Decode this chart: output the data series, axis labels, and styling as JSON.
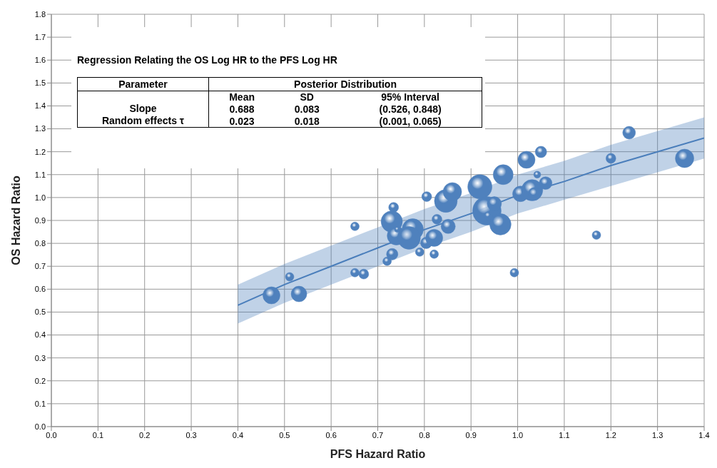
{
  "chart_data": {
    "type": "bubble",
    "xlabel": "PFS Hazard Ratio",
    "ylabel": "OS Hazard Ratio",
    "xlim": [
      0,
      1.4
    ],
    "ylim": [
      0,
      1.8
    ],
    "xticks": [
      {
        "value": 0,
        "label": "0.0"
      },
      {
        "value": 0.1,
        "label": "0.1"
      },
      {
        "value": 0.2,
        "label": "0.2"
      },
      {
        "value": 0.3,
        "label": "0.3"
      },
      {
        "value": 0.4,
        "label": "0.4"
      },
      {
        "value": 0.5,
        "label": "0.5"
      },
      {
        "value": 0.6,
        "label": "0.6"
      },
      {
        "value": 0.7,
        "label": "0.7"
      },
      {
        "value": 0.8,
        "label": "0.8"
      },
      {
        "value": 0.9,
        "label": "0.9"
      },
      {
        "value": 1,
        "label": "1.0"
      },
      {
        "value": 1.1,
        "label": "1.1"
      },
      {
        "value": 1.2,
        "label": "1.2"
      },
      {
        "value": 1.3,
        "label": "1.3"
      },
      {
        "value": 1.4,
        "label": "1.4"
      }
    ],
    "yticks": [
      {
        "value": 0,
        "label": "0.0"
      },
      {
        "value": 0.1,
        "label": "0.1"
      },
      {
        "value": 0.2,
        "label": "0.2"
      },
      {
        "value": 0.3,
        "label": "0.3"
      },
      {
        "value": 0.4,
        "label": "0.4"
      },
      {
        "value": 0.5,
        "label": "0.5"
      },
      {
        "value": 0.6,
        "label": "0.6"
      },
      {
        "value": 0.7,
        "label": "0.7"
      },
      {
        "value": 0.8,
        "label": "0.8"
      },
      {
        "value": 0.9,
        "label": "0.9"
      },
      {
        "value": 1,
        "label": "1.0"
      },
      {
        "value": 1.1,
        "label": "1.1"
      },
      {
        "value": 1.2,
        "label": "1.2"
      },
      {
        "value": 1.3,
        "label": "1.3"
      },
      {
        "value": 1.4,
        "label": "1.4"
      },
      {
        "value": 1.5,
        "label": "1.5"
      },
      {
        "value": 1.6,
        "label": "1.6"
      },
      {
        "value": 1.7,
        "label": "1.7"
      },
      {
        "value": 1.8,
        "label": "1.8"
      }
    ],
    "grid": true,
    "annotations": [
      "Regression Relating the OS Log HR to the PFS Log HR",
      "Parameter",
      "Posterior Distribution",
      "Mean",
      "SD",
      "95% Interval",
      "Slope",
      "0.688",
      "0.083",
      "(0.526, 0.848)",
      "Random effects τ",
      "0.023",
      "0.018",
      "(0.001, 0.065)"
    ],
    "series": [
      {
        "color": "#4f81bd",
        "x": [
          0.472,
          0.531,
          0.511,
          0.651,
          0.651,
          0.67,
          0.72,
          0.731,
          0.734,
          0.73,
          0.74,
          0.775,
          0.767,
          0.742,
          0.79,
          0.804,
          0.821,
          0.821,
          0.805,
          0.827,
          0.851,
          0.846,
          0.86,
          0.919,
          0.934,
          0.95,
          0.937,
          0.963,
          0.969,
          1.019,
          1.05,
          1.042,
          1.006,
          1.031,
          1.06,
          1.036,
          0.993,
          1.169,
          1.2,
          1.239,
          1.358
        ],
        "values": [
          0.573,
          0.579,
          0.654,
          0.874,
          0.672,
          0.666,
          0.722,
          0.753,
          0.957,
          0.895,
          0.833,
          0.861,
          0.824,
          0.861,
          0.762,
          0.802,
          0.824,
          0.753,
          1.004,
          0.905,
          0.874,
          0.985,
          1.025,
          1.047,
          0.942,
          0.973,
          0.92,
          0.883,
          1.1,
          1.165,
          1.199,
          1.1,
          1.016,
          1.032,
          1.063,
          1.016,
          0.672,
          0.836,
          1.171,
          1.283,
          1.171
        ],
        "sizes": [
          0.36,
          0.3,
          0.09,
          0.09,
          0.09,
          0.12,
          0.09,
          0.16,
          0.12,
          0.56,
          0.42,
          0.56,
          0.64,
          0.04,
          0.09,
          0.16,
          0.36,
          0.09,
          0.12,
          0.12,
          0.25,
          0.64,
          0.42,
          0.72,
          1,
          0.25,
          0.09,
          0.56,
          0.49,
          0.36,
          0.16,
          0.06,
          0.3,
          0.56,
          0.2,
          0.2,
          0.09,
          0.09,
          0.12,
          0.2,
          0.42
        ]
      },
      {
        "type": "line",
        "color": "#4a7ebb",
        "x": [
          0.4,
          0.5,
          0.6,
          0.7,
          0.8,
          0.9,
          1.0,
          1.1,
          1.2,
          1.3,
          1.4
        ],
        "values": [
          0.53,
          0.62,
          0.7,
          0.78,
          0.86,
          0.93,
          1.01,
          1.07,
          1.14,
          1.2,
          1.26
        ],
        "lower": [
          0.45,
          0.54,
          0.62,
          0.7,
          0.78,
          0.85,
          0.93,
          0.99,
          1.05,
          1.11,
          1.17
        ],
        "upper": [
          0.62,
          0.71,
          0.79,
          0.87,
          0.95,
          1.02,
          1.1,
          1.16,
          1.23,
          1.29,
          1.35
        ]
      }
    ]
  }
}
